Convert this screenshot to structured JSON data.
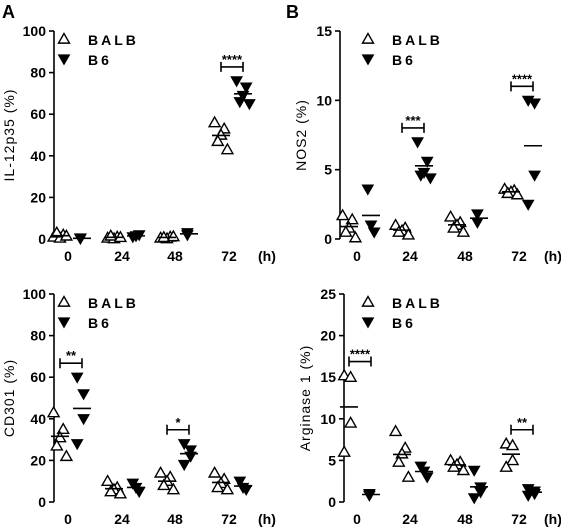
{
  "figure": {
    "panel_labels": [
      "A",
      "B"
    ]
  },
  "chart_data": [
    {
      "type": "scatter",
      "panel": "A",
      "ylabel": "IL-12p35 (%)",
      "xlabel": "",
      "x_ticks": [
        "0",
        "24",
        "48",
        "72",
        "(h)"
      ],
      "yticks": [
        "0",
        "20",
        "40",
        "60",
        "80",
        "100"
      ],
      "ylim": [
        0,
        100
      ],
      "legend": {
        "position": "top",
        "entries": [
          "BALB",
          "B6"
        ]
      },
      "series": [
        {
          "name": "BALB",
          "marker": "open-triangle-up",
          "groups": [
            {
              "time": "0",
              "values": [
                1,
                2,
                0.5,
                3,
                1.5
              ]
            },
            {
              "time": "24",
              "values": [
                0.5,
                1,
                0.2,
                1.5,
                0.8
              ]
            },
            {
              "time": "48",
              "values": [
                0.5,
                1,
                0.2,
                0.8,
                1.2
              ]
            },
            {
              "time": "72",
              "values": [
                56,
                53,
                50,
                47,
                43
              ]
            }
          ]
        },
        {
          "name": "B6",
          "marker": "filled-triangle-down",
          "groups": [
            {
              "time": "0",
              "values": [
                0.2,
                0.5
              ]
            },
            {
              "time": "24",
              "values": [
                1,
                1.5,
                2
              ]
            },
            {
              "time": "48",
              "values": [
                2,
                3
              ]
            },
            {
              "time": "72",
              "values": [
                76,
                73,
                69,
                66,
                65
              ]
            }
          ]
        }
      ],
      "significance": [
        {
          "time": "72",
          "label": "****"
        }
      ]
    },
    {
      "type": "scatter",
      "panel": "B",
      "ylabel": "NOS2 (%)",
      "xlabel": "",
      "x_ticks": [
        "0",
        "24",
        "48",
        "72",
        "(h)"
      ],
      "yticks": [
        "0",
        "5",
        "10",
        "15"
      ],
      "ylim": [
        0,
        15
      ],
      "legend": {
        "position": "top",
        "entries": [
          "BALB",
          "B6"
        ]
      },
      "series": [
        {
          "name": "BALB",
          "marker": "open-triangle-up",
          "groups": [
            {
              "time": "0",
              "values": [
                1.7,
                1.4,
                0.8,
                0.5,
                0.1
              ]
            },
            {
              "time": "24",
              "values": [
                1.0,
                0.8,
                0.6,
                0.5,
                0.3
              ]
            },
            {
              "time": "48",
              "values": [
                1.6,
                1.2,
                1.0,
                0.8,
                0.5
              ]
            },
            {
              "time": "72",
              "values": [
                3.6,
                3.5,
                3.4,
                3.3,
                3.2
              ]
            }
          ]
        },
        {
          "name": "B6",
          "marker": "filled-triangle-down",
          "groups": [
            {
              "time": "0",
              "values": [
                3.6,
                1.0,
                0.5
              ]
            },
            {
              "time": "24",
              "values": [
                7.0,
                5.6,
                4.8,
                4.6,
                4.4
              ]
            },
            {
              "time": "48",
              "values": [
                1.8,
                1.2
              ]
            },
            {
              "time": "72",
              "values": [
                10.0,
                9.8,
                4.6,
                2.5
              ]
            }
          ]
        }
      ],
      "significance": [
        {
          "time": "24",
          "label": "***"
        },
        {
          "time": "72",
          "label": "****"
        }
      ]
    },
    {
      "type": "scatter",
      "panel": "A",
      "ylabel": "CD301 (%)",
      "xlabel": "",
      "x_ticks": [
        "0",
        "24",
        "48",
        "72",
        "(h)"
      ],
      "yticks": [
        "0",
        "20",
        "40",
        "60",
        "80",
        "100"
      ],
      "ylim": [
        0,
        100
      ],
      "legend": {
        "position": "top",
        "entries": [
          "BALB",
          "B6"
        ]
      },
      "series": [
        {
          "name": "BALB",
          "marker": "open-triangle-up",
          "groups": [
            {
              "time": "0",
              "values": [
                43,
                35,
                31,
                27,
                22
              ]
            },
            {
              "time": "24",
              "values": [
                10,
                7,
                6,
                5,
                4
              ]
            },
            {
              "time": "48",
              "values": [
                14,
                12,
                10,
                8,
                6
              ]
            },
            {
              "time": "72",
              "values": [
                14,
                11,
                9,
                7,
                6
              ]
            }
          ]
        },
        {
          "name": "B6",
          "marker": "filled-triangle-down",
          "groups": [
            {
              "time": "0",
              "values": [
                60,
                52,
                40,
                28
              ]
            },
            {
              "time": "24",
              "values": [
                9,
                7,
                5
              ]
            },
            {
              "time": "48",
              "values": [
                28,
                25,
                22,
                18
              ]
            },
            {
              "time": "72",
              "values": [
                10,
                7,
                6
              ]
            }
          ]
        }
      ],
      "significance": [
        {
          "time": "0",
          "label": "**"
        },
        {
          "time": "48",
          "label": "*"
        }
      ]
    },
    {
      "type": "scatter",
      "panel": "B",
      "ylabel": "Arginase 1 (%)",
      "xlabel": "",
      "x_ticks": [
        "0",
        "24",
        "48",
        "72",
        "(h)"
      ],
      "yticks": [
        "0",
        "5",
        "10",
        "15",
        "20",
        "25"
      ],
      "ylim": [
        0,
        25
      ],
      "legend": {
        "position": "top",
        "entries": [
          "BALB",
          "B6"
        ]
      },
      "series": [
        {
          "name": "BALB",
          "marker": "open-triangle-up",
          "groups": [
            {
              "time": "0",
              "values": [
                15.2,
                15.0,
                9.5,
                6.0
              ]
            },
            {
              "time": "24",
              "values": [
                8.5,
                6.5,
                5.8,
                4.8,
                3.0
              ]
            },
            {
              "time": "48",
              "values": [
                5.0,
                4.8,
                4.5,
                4.2,
                3.8
              ]
            },
            {
              "time": "72",
              "values": [
                7.0,
                6.8,
                5.0,
                4.2
              ]
            }
          ]
        },
        {
          "name": "B6",
          "marker": "filled-triangle-down",
          "groups": [
            {
              "time": "0",
              "values": [
                1.0,
                0.8
              ]
            },
            {
              "time": "24",
              "values": [
                4.3,
                3.7,
                3.0
              ]
            },
            {
              "time": "48",
              "values": [
                3.8,
                1.8,
                1.2,
                0.5
              ]
            },
            {
              "time": "72",
              "values": [
                1.6,
                1.3,
                1.0,
                0.8
              ]
            }
          ]
        }
      ],
      "significance": [
        {
          "time": "0",
          "label": "****"
        },
        {
          "time": "72",
          "label": "**"
        }
      ]
    }
  ]
}
